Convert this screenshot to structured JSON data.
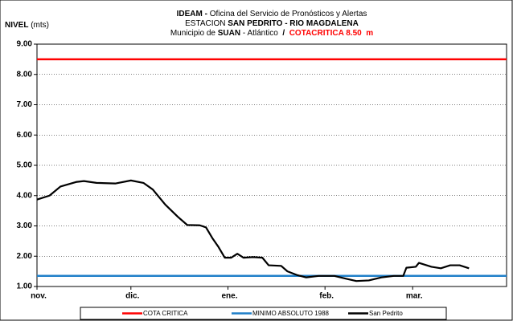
{
  "chart_data": {
    "type": "line",
    "title_lines": [
      [
        "IDEAM -",
        " Oficina del Servicio de Pronósticos y Alertas"
      ],
      [
        "ESTACION ",
        "SAN PEDRITO - RIO MAGDALENA"
      ],
      [
        "Municipio de ",
        "SUAN",
        " - Atlántico  ",
        "/",
        "  COTACRITICA 8.50  m"
      ]
    ],
    "y_label": [
      "NIVEL",
      " (mts)"
    ],
    "xlim": [
      0,
      150
    ],
    "xticks": [
      {
        "value": 0,
        "label": "nov."
      },
      {
        "value": 30,
        "label": "dic."
      },
      {
        "value": 61,
        "label": "ene."
      },
      {
        "value": 92,
        "label": "feb."
      },
      {
        "value": 120,
        "label": "mar."
      }
    ],
    "ylim": [
      1,
      9
    ],
    "yticks": [
      {
        "value": 1,
        "label": "1.00"
      },
      {
        "value": 2,
        "label": "2.00"
      },
      {
        "value": 3,
        "label": "3.00"
      },
      {
        "value": 4,
        "label": "4.00"
      },
      {
        "value": 5,
        "label": "5.00"
      },
      {
        "value": 6,
        "label": "6.00"
      },
      {
        "value": 7,
        "label": "7.00"
      },
      {
        "value": 8,
        "label": "8.00"
      },
      {
        "value": 9,
        "label": "9.00"
      }
    ],
    "grid": true,
    "legend": "bottom",
    "series": [
      {
        "name": "COTA CRITICA",
        "color": "#ff0000",
        "x": [
          0,
          150
        ],
        "values": [
          8.5,
          8.5
        ]
      },
      {
        "name": "MINIMO ABSOLUTO 1988",
        "color": "#1f7fc8",
        "x": [
          0,
          150
        ],
        "values": [
          1.35,
          1.35
        ]
      },
      {
        "name": "San Pedrito",
        "color": "#000000",
        "x": [
          0,
          4,
          7.5,
          12.5,
          15,
          19,
          25,
          30,
          34,
          37,
          41,
          45,
          48,
          52,
          54,
          56,
          58,
          60,
          62,
          64,
          66,
          69,
          72,
          74,
          78,
          80,
          83,
          86,
          90,
          95,
          99,
          102,
          106,
          110,
          114,
          117,
          118,
          121,
          122,
          126,
          129,
          132,
          135,
          138
        ],
        "values": [
          3.87,
          4.0,
          4.3,
          4.45,
          4.48,
          4.42,
          4.4,
          4.5,
          4.42,
          4.2,
          3.7,
          3.3,
          3.03,
          3.02,
          2.95,
          2.6,
          2.3,
          1.95,
          1.95,
          2.08,
          1.95,
          1.97,
          1.95,
          1.7,
          1.68,
          1.5,
          1.38,
          1.3,
          1.35,
          1.35,
          1.25,
          1.18,
          1.2,
          1.3,
          1.35,
          1.35,
          1.62,
          1.65,
          1.78,
          1.65,
          1.6,
          1.7,
          1.7,
          1.6
        ]
      }
    ]
  }
}
